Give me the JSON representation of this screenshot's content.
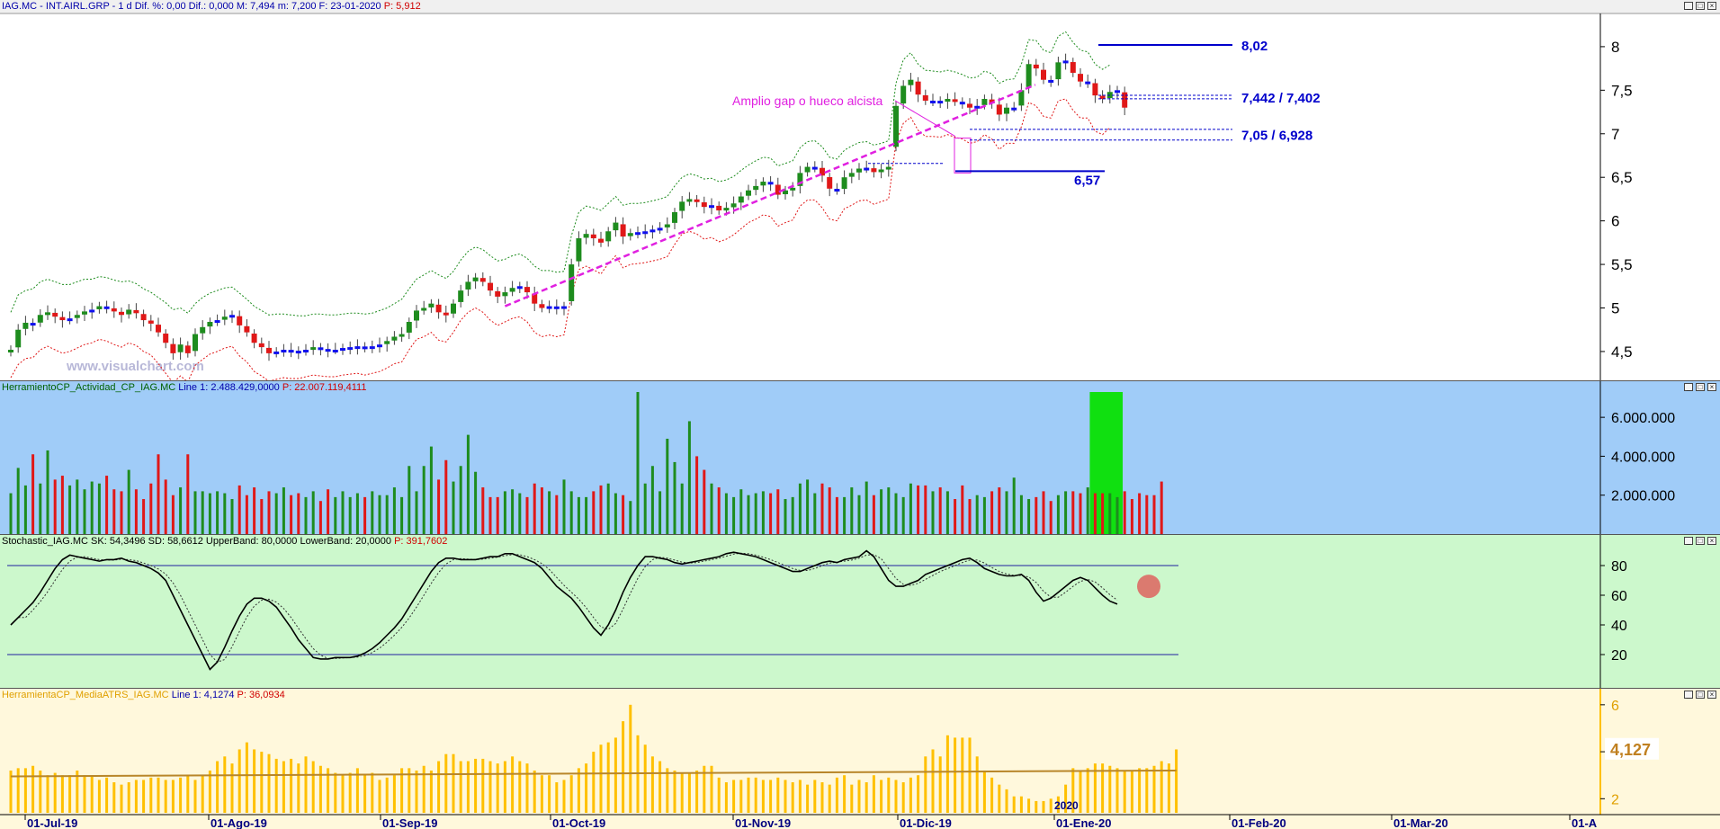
{
  "colors": {
    "up": "#1e8c1e",
    "down": "#e01818",
    "doji": "#1010ee",
    "magenta": "#e020e0",
    "level": "#0000cc",
    "env_up": "#1e8c1e",
    "env_down": "#e01818",
    "vol_bg": "#a0ccf8",
    "stoch_bg": "#ccf8cc",
    "atr_bg": "#fff8dc",
    "atr_bar": "#ffc000",
    "atr_avg": "#b8862a",
    "highlight": "#10e010"
  },
  "panels": {
    "price": {
      "title_sym": "IAG.MC - INT.AIRL.GRP - ",
      "title_period": "1 d",
      "title_stats": "Dif. %: 0,00  Dif.: 0,000  M: 7,494  m: 7,200  F: 23-01-2020",
      "title_p": "P: 5,912",
      "watermark": "www.visualchart.com"
    },
    "volume": {
      "title": "HerramientoCP_Actividad_CP_IAG.MC",
      "line": "Line 1: 2.488.429,0000",
      "p": "P: 22.007.119,4111"
    },
    "stoch": {
      "title": "Stochastic_IAG.MC",
      "sk": "SK: 54,3496",
      "sd": "SD: 58,6612",
      "ub": "UpperBand: 80,0000",
      "lb": "LowerBand: 20,0000",
      "p": "P: 391,7602"
    },
    "atr": {
      "title": "HerramientaCP_MediaATRS_IAG.MC",
      "line": "Line 1: 4,1274",
      "p": "P: 36,0934",
      "value_label": "4,127"
    }
  },
  "annotations": {
    "gap": "Amplio gap o hueco alcista",
    "l802": "8,02",
    "l7442": "7,442 / 7,402",
    "l705": "7,05 / 6,928",
    "l657": "6,57",
    "year": "2020"
  },
  "chart_data": [
    {
      "type": "candlestick",
      "title": "IAG.MC - INT.AIRL.GRP - 1 d",
      "x_tick_labels": [
        "01-Jul-19",
        "01-Ago-19",
        "01-Sep-19",
        "01-Oct-19",
        "01-Nov-19",
        "01-Dic-19",
        "01-Ene-20",
        "01-Feb-20",
        "01-Mar-20",
        "01-A"
      ],
      "y_tick_labels": [
        "4,5",
        "5",
        "5,5",
        "6",
        "6,5",
        "7",
        "7,5",
        "8"
      ],
      "ylim": [
        4.2,
        8.35
      ],
      "close": [
        4.52,
        4.75,
        4.83,
        4.82,
        4.92,
        4.95,
        4.9,
        4.86,
        4.88,
        4.92,
        4.96,
        4.98,
        5.02,
        5.0,
        4.96,
        4.92,
        4.98,
        4.94,
        4.86,
        4.82,
        4.72,
        4.6,
        4.48,
        4.58,
        4.48,
        4.7,
        4.78,
        4.84,
        4.86,
        4.9,
        4.92,
        4.8,
        4.72,
        4.6,
        4.55,
        4.48,
        4.5,
        4.52,
        4.51,
        4.5,
        4.52,
        4.55,
        4.53,
        4.52,
        4.52,
        4.54,
        4.55,
        4.56,
        4.54,
        4.56,
        4.58,
        4.62,
        4.67,
        4.7,
        4.84,
        4.97,
        5.0,
        5.05,
        4.95,
        4.92,
        5.05,
        5.2,
        5.3,
        5.35,
        5.3,
        5.2,
        5.13,
        5.18,
        5.23,
        5.25,
        5.18,
        5.05,
        5.0,
        5.02,
        5.0,
        5.02,
        5.5,
        5.8,
        5.85,
        5.8,
        5.75,
        5.88,
        5.98,
        5.82,
        5.86,
        5.87,
        5.88,
        5.9,
        5.92,
        5.96,
        6.1,
        6.22,
        6.25,
        6.22,
        6.16,
        6.18,
        6.12,
        6.15,
        6.2,
        6.28,
        6.35,
        6.4,
        6.45,
        6.43,
        6.3,
        6.35,
        6.38,
        6.55,
        6.62,
        6.62,
        6.52,
        6.37,
        6.35,
        6.5,
        6.55,
        6.6,
        6.61,
        6.56,
        6.59,
        6.62,
        7.32,
        7.55,
        7.62,
        7.45,
        7.38,
        7.38,
        7.37,
        7.4,
        7.37,
        7.35,
        7.3,
        7.32,
        7.4,
        7.35,
        7.22,
        7.3,
        7.3,
        7.5,
        7.8,
        7.75,
        7.62,
        7.6,
        7.82,
        7.84,
        7.7,
        7.6,
        7.6,
        7.44,
        7.4,
        7.48,
        7.5,
        7.3
      ],
      "envelope_upper": [
        4.95,
        5.15,
        5.2,
        5.22,
        5.3,
        5.33,
        5.3,
        5.27,
        5.27,
        5.3,
        5.33,
        5.33,
        5.36,
        5.35,
        5.32,
        5.3,
        5.31,
        5.28,
        5.22,
        5.18,
        5.12,
        5.06,
        4.98,
        5.0,
        4.94,
        5.05,
        5.12,
        5.17,
        5.2,
        5.23,
        5.24,
        5.17,
        5.1,
        5.02,
        4.97,
        4.92,
        4.93,
        4.93,
        4.92,
        4.91,
        4.91,
        4.93,
        4.93,
        4.92,
        4.92,
        4.93,
        4.94,
        4.94,
        4.93,
        4.94,
        4.97,
        5.0,
        5.05,
        5.1,
        5.22,
        5.33,
        5.38,
        5.43,
        5.38,
        5.34,
        5.42,
        5.55,
        5.65,
        5.7,
        5.67,
        5.6,
        5.54,
        5.56,
        5.6,
        5.62,
        5.57,
        5.48,
        5.43,
        5.43,
        5.41,
        5.42,
        5.83,
        6.1,
        6.17,
        6.15,
        6.12,
        6.2,
        6.28,
        6.18,
        6.2,
        6.2,
        6.21,
        6.23,
        6.25,
        6.28,
        6.4,
        6.5,
        6.54,
        6.52,
        6.48,
        6.49,
        6.45,
        6.47,
        6.51,
        6.58,
        6.64,
        6.69,
        6.73,
        6.72,
        6.63,
        6.66,
        6.69,
        6.84,
        6.91,
        6.92,
        6.85,
        6.73,
        6.71,
        6.81,
        6.86,
        6.9,
        6.91,
        6.87,
        6.89,
        6.92,
        7.58,
        7.85,
        7.93,
        7.8,
        7.73,
        7.72,
        7.71,
        7.73,
        7.71,
        7.68,
        7.64,
        7.65,
        7.72,
        7.69,
        7.58,
        7.62,
        7.63,
        7.8,
        8.08,
        8.07,
        7.96,
        7.93,
        8.12,
        8.17,
        8.05,
        7.96,
        7.94,
        7.8,
        7.74,
        7.79
      ],
      "envelope_lower": [
        4.2,
        4.35,
        4.42,
        4.43,
        4.52,
        4.56,
        4.52,
        4.48,
        4.5,
        4.54,
        4.58,
        4.6,
        4.64,
        4.62,
        4.58,
        4.55,
        4.6,
        4.57,
        4.5,
        4.46,
        4.36,
        4.25,
        4.14,
        4.22,
        4.15,
        4.34,
        4.41,
        4.47,
        4.5,
        4.54,
        4.56,
        4.45,
        4.38,
        4.27,
        4.22,
        4.16,
        4.18,
        4.2,
        4.19,
        4.19,
        4.21,
        4.23,
        4.22,
        4.21,
        4.21,
        4.23,
        4.24,
        4.25,
        4.23,
        4.25,
        4.27,
        4.31,
        4.36,
        4.38,
        4.52,
        4.64,
        4.67,
        4.72,
        4.63,
        4.61,
        4.72,
        4.86,
        4.95,
        5.0,
        4.95,
        4.86,
        4.8,
        4.84,
        4.88,
        4.9,
        4.84,
        4.72,
        4.67,
        4.69,
        4.67,
        4.69,
        5.15,
        5.44,
        5.48,
        5.44,
        5.39,
        5.51,
        5.6,
        5.46,
        5.5,
        5.51,
        5.52,
        5.54,
        5.56,
        5.59,
        5.73,
        5.85,
        5.88,
        5.85,
        5.79,
        5.81,
        5.76,
        5.79,
        5.84,
        5.91,
        5.98,
        6.02,
        6.07,
        6.05,
        5.94,
        5.98,
        6.01,
        6.17,
        6.24,
        6.24,
        6.15,
        6.02,
        6.0,
        6.14,
        6.18,
        6.23,
        6.24,
        6.19,
        6.22,
        6.25,
        6.9,
        7.12,
        7.19,
        7.04,
        6.97,
        6.97,
        6.96,
        6.99,
        6.96,
        6.94,
        6.89,
        6.91,
        6.99,
        6.94,
        6.82,
        6.89,
        6.89,
        7.08,
        7.36,
        7.32,
        7.2,
        7.18,
        7.38,
        7.4,
        7.27,
        7.18,
        7.18,
        7.03,
        6.99,
        7.07
      ],
      "trendline": [
        {
          "x_index": 67,
          "y": 5.02
        },
        {
          "x_index": 134,
          "y": 7.5
        }
      ]
    },
    {
      "type": "bar",
      "title": "HerramientoCP_Actividad_CP_IAG.MC",
      "y_tick_labels": [
        "2.000.000",
        "4.000.000",
        "6.000.000"
      ],
      "ylim": [
        0,
        7300000
      ],
      "values": [
        2100000,
        3400000,
        2500000,
        4100000,
        2600000,
        4300000,
        2800000,
        3000000,
        2500000,
        2800000,
        2300000,
        2700000,
        2600000,
        3000000,
        2300000,
        2200000,
        3300000,
        2300000,
        1800000,
        2600000,
        4100000,
        2800000,
        2000000,
        2400000,
        4100000,
        2200000,
        2200000,
        2100000,
        2200000,
        2100000,
        1800000,
        2500000,
        2000000,
        2400000,
        1800000,
        2200000,
        2100000,
        2400000,
        2000000,
        2100000,
        1900000,
        2200000,
        1700000,
        2300000,
        1900000,
        2200000,
        1900000,
        2100000,
        1900000,
        2200000,
        2000000,
        2000000,
        2400000,
        1900000,
        3500000,
        2200000,
        3500000,
        4500000,
        2800000,
        3800000,
        2700000,
        3500000,
        5100000,
        3200000,
        2400000,
        1900000,
        1900000,
        2200000,
        2300000,
        2100000,
        1900000,
        2600000,
        2400000,
        2200000,
        2000000,
        2800000,
        2200000,
        1900000,
        1900000,
        2200000,
        2500000,
        2600000,
        2100000,
        2000000,
        1700000,
        7300000,
        2600000,
        3500000,
        2200000,
        4900000,
        3700000,
        2600000,
        5800000,
        4000000,
        3300000,
        2600000,
        2400000,
        2100000,
        1900000,
        2300000,
        2000000,
        2100000,
        2200000,
        2100000,
        2300000,
        1800000,
        1900000,
        2600000,
        2800000,
        2100000,
        2600000,
        2400000,
        1900000,
        1900000,
        2400000,
        2000000,
        2700000,
        2000000,
        2300000,
        2400000,
        2100000,
        1900000,
        2600000,
        2500000,
        2500000,
        2200000,
        2400000,
        2200000,
        1800000,
        2500000,
        1800000,
        2000000,
        1900000,
        2200000,
        2400000,
        2200000,
        2900000,
        2000000,
        1800000,
        1900000,
        2200000,
        1700000,
        2000000,
        2200000,
        2200000,
        2100000,
        2400000,
        2100000,
        2100000,
        2100000,
        1900000,
        2200000,
        1800000,
        2100000,
        2000000,
        2000000,
        2700000
      ],
      "highlight_range_index": [
        147,
        150
      ]
    },
    {
      "type": "line",
      "title": "Stochastic_IAG.MC",
      "y_tick_labels": [
        "20",
        "40",
        "60",
        "80"
      ],
      "ylim": [
        0,
        100
      ],
      "bands": [
        80,
        20
      ],
      "sk": [
        40,
        45,
        50,
        55,
        62,
        70,
        78,
        84,
        87,
        86,
        85,
        84,
        83,
        84,
        84,
        85,
        83,
        82,
        80,
        78,
        75,
        70,
        60,
        50,
        40,
        30,
        20,
        10,
        15,
        25,
        36,
        46,
        54,
        58,
        58,
        56,
        52,
        45,
        38,
        30,
        24,
        18,
        17,
        17,
        18,
        18,
        18,
        19,
        21,
        24,
        28,
        33,
        38,
        44,
        52,
        60,
        68,
        76,
        82,
        85,
        85,
        84,
        84,
        84,
        85,
        86,
        86,
        88,
        88,
        86,
        84,
        82,
        78,
        72,
        66,
        62,
        58,
        52,
        45,
        38,
        33,
        40,
        50,
        62,
        72,
        80,
        86,
        86,
        85,
        84,
        82,
        81,
        82,
        83,
        84,
        85,
        86,
        88,
        89,
        88,
        87,
        86,
        84,
        82,
        80,
        78,
        76,
        76,
        78,
        80,
        82,
        83,
        82,
        84,
        85,
        86,
        90,
        86,
        78,
        70,
        66,
        66,
        68,
        70,
        74,
        76,
        78,
        80,
        82,
        84,
        85,
        82,
        78,
        76,
        74,
        73,
        73,
        74,
        70,
        62,
        56,
        58,
        62,
        66,
        70,
        72,
        70,
        65,
        60,
        56,
        54
      ]
    },
    {
      "type": "bar",
      "title": "HerramientaCP_MediaATRS_IAG.MC",
      "y_tick_labels": [
        "2",
        "4",
        "6"
      ],
      "ylim": [
        1.4,
        6.3
      ],
      "values": [
        3.2,
        3.3,
        3.3,
        3.4,
        3.2,
        3.0,
        3.1,
        3.0,
        3.0,
        3.2,
        3.0,
        3.0,
        2.8,
        2.9,
        2.7,
        2.6,
        2.7,
        2.8,
        2.8,
        2.9,
        2.9,
        2.8,
        2.8,
        2.9,
        3.0,
        2.8,
        3.0,
        3.2,
        3.6,
        3.8,
        3.5,
        4.1,
        4.4,
        4.1,
        4.0,
        3.9,
        3.7,
        3.6,
        3.7,
        3.5,
        3.8,
        3.6,
        3.4,
        3.3,
        3.1,
        3.0,
        3.1,
        3.3,
        3.0,
        3.1,
        2.8,
        2.9,
        3.0,
        3.3,
        3.3,
        3.2,
        3.4,
        3.2,
        3.6,
        3.9,
        3.9,
        3.6,
        3.6,
        3.7,
        3.7,
        3.6,
        3.5,
        3.6,
        3.8,
        3.6,
        3.5,
        3.2,
        3.0,
        3.0,
        2.7,
        2.8,
        3.0,
        3.3,
        3.5,
        4.0,
        4.3,
        4.4,
        4.6,
        5.3,
        6.0,
        4.7,
        4.3,
        3.8,
        3.6,
        3.3,
        3.2,
        3.1,
        3.1,
        3.2,
        3.4,
        3.4,
        2.9,
        2.7,
        2.8,
        2.8,
        2.9,
        2.9,
        2.8,
        2.8,
        2.9,
        2.8,
        2.7,
        2.8,
        2.6,
        2.8,
        2.7,
        2.6,
        2.9,
        3.0,
        2.6,
        2.8,
        2.7,
        3.0,
        2.8,
        2.9,
        2.8,
        2.7,
        2.9,
        3.0,
        3.8,
        4.1,
        3.8,
        4.7,
        4.6,
        4.6,
        4.6,
        3.8,
        3.2,
        2.9,
        2.6,
        2.4,
        2.1,
        2.1,
        2.0,
        1.9,
        1.9,
        2.0,
        2.1,
        2.6,
        3.3,
        3.2,
        3.3,
        3.5,
        3.5,
        3.4,
        3.3,
        3.2,
        3.2,
        3.3,
        3.3,
        3.4,
        3.6,
        3.5,
        4.1
      ],
      "moving_average": [
        2.95,
        3.2
      ]
    }
  ]
}
